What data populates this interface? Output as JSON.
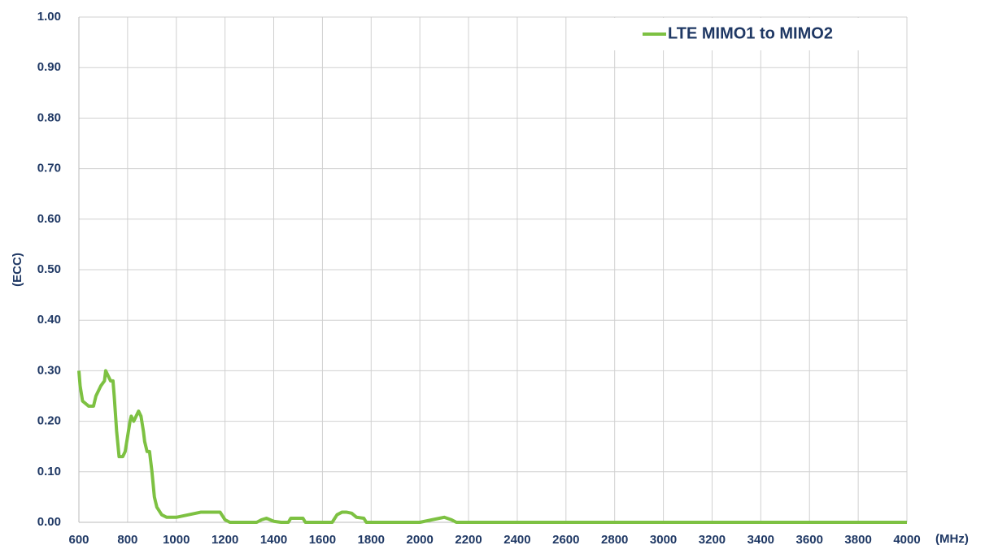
{
  "chart_data": {
    "type": "line",
    "xlabel": "(MHz)",
    "ylabel": "(ECC)",
    "x": [
      600,
      605,
      615,
      640,
      660,
      670,
      690,
      705,
      710,
      720,
      730,
      740,
      745,
      755,
      765,
      780,
      790,
      800,
      810,
      815,
      825,
      835,
      845,
      855,
      865,
      870,
      880,
      890,
      900,
      910,
      920,
      940,
      960,
      1000,
      1050,
      1100,
      1150,
      1180,
      1200,
      1220,
      1330,
      1350,
      1370,
      1400,
      1430,
      1460,
      1470,
      1520,
      1530,
      1640,
      1660,
      1680,
      1700,
      1720,
      1740,
      1770,
      1780,
      2000,
      2050,
      2100,
      2130,
      2150,
      4000
    ],
    "series": [
      {
        "name": "LTE MIMO1 to MIMO2",
        "color": "#7dc142",
        "values": [
          0.3,
          0.27,
          0.24,
          0.23,
          0.23,
          0.25,
          0.27,
          0.28,
          0.3,
          0.29,
          0.28,
          0.28,
          0.25,
          0.18,
          0.13,
          0.13,
          0.14,
          0.17,
          0.2,
          0.21,
          0.2,
          0.21,
          0.22,
          0.21,
          0.18,
          0.16,
          0.14,
          0.14,
          0.1,
          0.05,
          0.03,
          0.015,
          0.01,
          0.01,
          0.015,
          0.02,
          0.02,
          0.02,
          0.005,
          0,
          0,
          0.005,
          0.008,
          0.002,
          0,
          0,
          0.008,
          0.008,
          0,
          0,
          0.015,
          0.02,
          0.02,
          0.018,
          0.01,
          0.008,
          0,
          0,
          0.005,
          0.01,
          0.005,
          0,
          0
        ]
      }
    ],
    "xlim": [
      600,
      4000
    ],
    "xticks": [
      600,
      800,
      1000,
      1200,
      1400,
      1600,
      1800,
      2000,
      2200,
      2400,
      2600,
      2800,
      3000,
      3200,
      3400,
      3600,
      3800,
      4000
    ],
    "ylim": [
      0,
      1
    ],
    "yticks": [
      {
        "value": 0,
        "label": "0.00"
      },
      {
        "value": 0.1,
        "label": "0.10"
      },
      {
        "value": 0.2,
        "label": "0.20"
      },
      {
        "value": 0.3,
        "label": "0.30"
      },
      {
        "value": 0.4,
        "label": "0.40"
      },
      {
        "value": 0.5,
        "label": "0.50"
      },
      {
        "value": 0.6,
        "label": "0.60"
      },
      {
        "value": 0.7,
        "label": "0.70"
      },
      {
        "value": 0.8,
        "label": "0.80"
      },
      {
        "value": 0.9,
        "label": "0.90"
      },
      {
        "value": 1,
        "label": "1.00"
      }
    ],
    "grid": true,
    "legend": "upper right"
  }
}
